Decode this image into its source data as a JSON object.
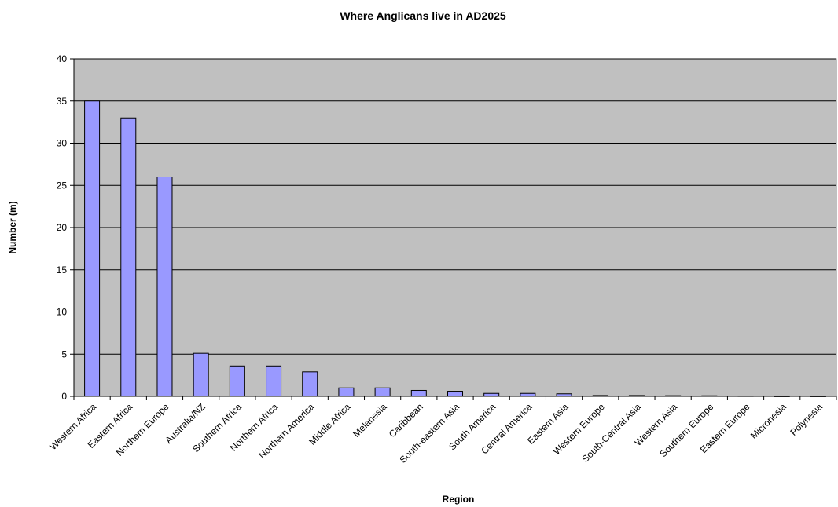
{
  "chart_data": {
    "type": "bar",
    "title": "Where Anglicans live in AD2025",
    "xlabel": "Region",
    "ylabel": "Number (m)",
    "ylim": [
      0,
      40
    ],
    "yticks": [
      0,
      5,
      10,
      15,
      20,
      25,
      30,
      35,
      40
    ],
    "grid": true,
    "legend": "none",
    "colors": {
      "bar": "#9999ff",
      "plot_bg": "#c0c0c0",
      "bar_stroke": "#000000"
    },
    "categories": [
      "Western Africa",
      "Eastern Africa",
      "Northern Europe",
      "Australia/NZ",
      "Southern Africa",
      "Northern Africa",
      "Northern America",
      "Middle Africa",
      "Melanesia",
      "Caribbean",
      "South-eastern Asia",
      "South America",
      "Central America",
      "Eastern Asia",
      "Western Europe",
      "South-Central Asia",
      "Western Asia",
      "Southern Europe",
      "Eastern Europe",
      "Micronesia",
      "Polynesia"
    ],
    "values": [
      35,
      33,
      26,
      5.1,
      3.6,
      3.6,
      2.9,
      1.0,
      1.0,
      0.7,
      0.6,
      0.35,
      0.35,
      0.3,
      0.1,
      0.1,
      0.08,
      0.07,
      0.04,
      0.01,
      0.01
    ]
  }
}
